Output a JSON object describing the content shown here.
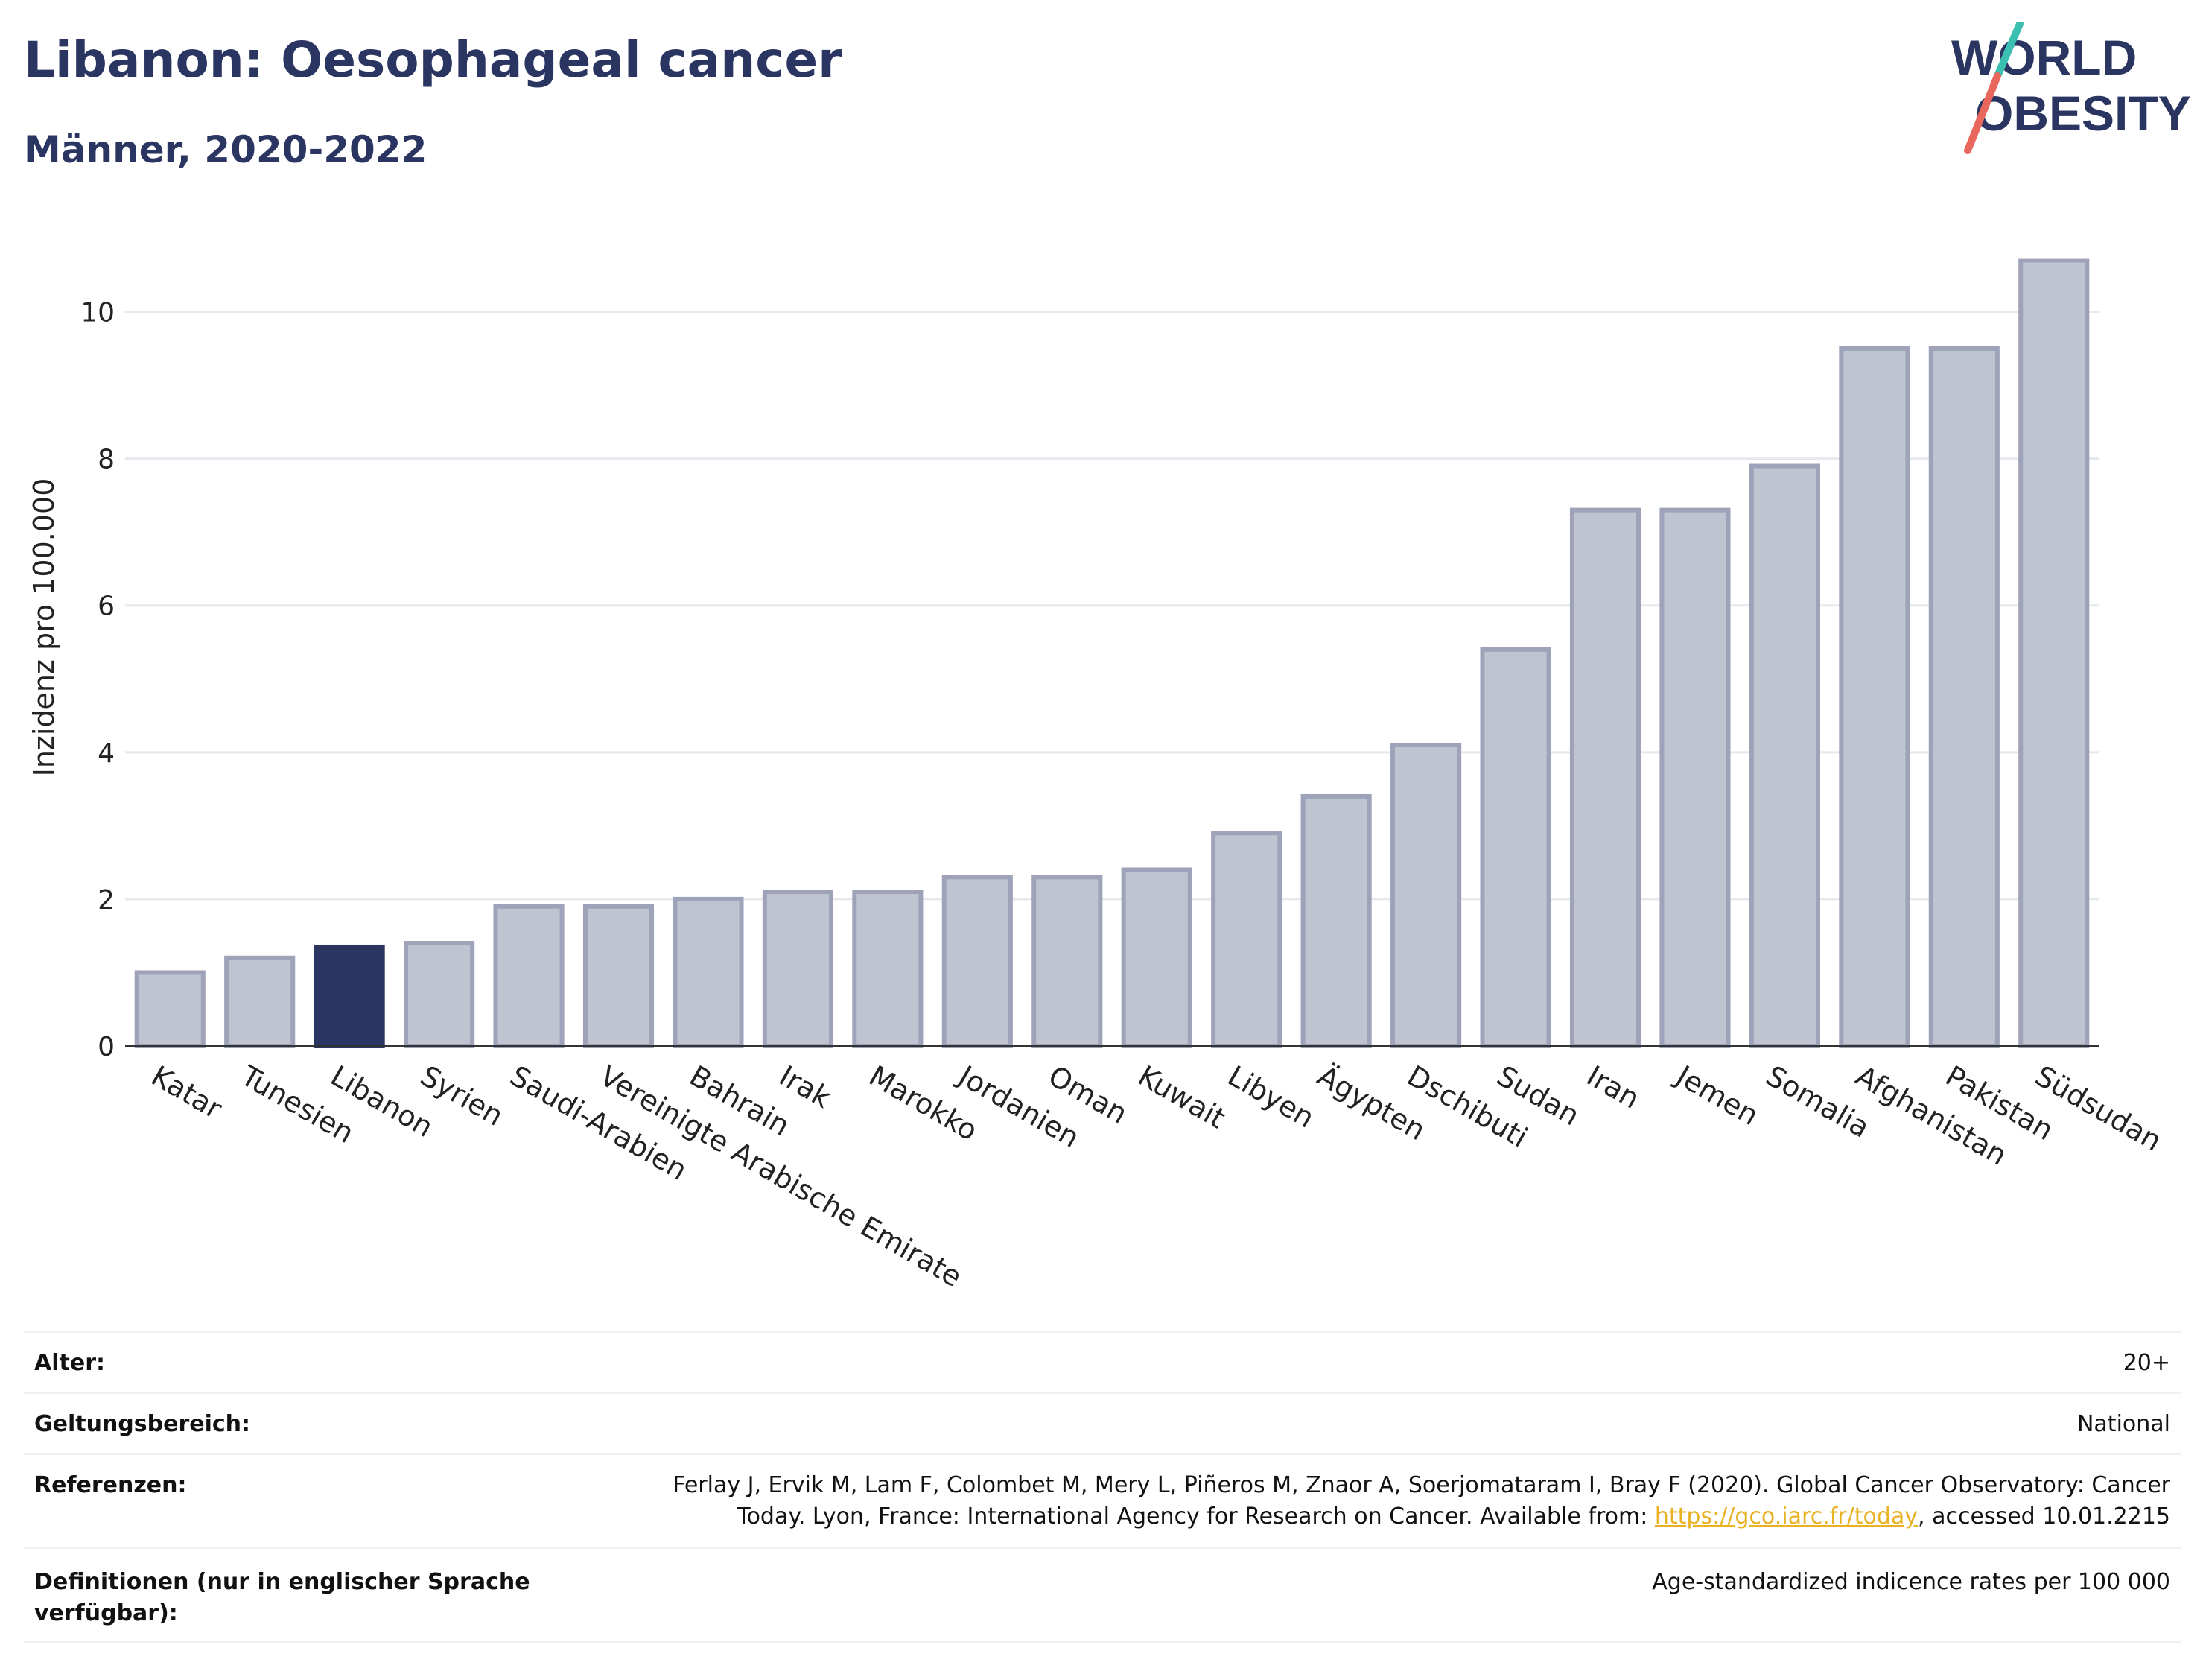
{
  "header": {
    "title": "Libanon: Oesophageal cancer",
    "subtitle": "Männer, 2020-2022"
  },
  "logo": {
    "line1": "WORLD",
    "line2": "OBESITY",
    "text_color": "#2b3561",
    "slash_top_color": "#3bbfb1",
    "slash_bottom_color": "#e8685d"
  },
  "colors": {
    "bar": "#c0c3d0",
    "bar_border": "#9ea3b9",
    "highlight": "#2b3561",
    "grid": "#e6e8ee",
    "axis": "#333333"
  },
  "chart_data": {
    "type": "bar",
    "ylabel": "Inzidenz pro 100.000",
    "ylim": [
      0,
      11
    ],
    "yticks": [
      0,
      2,
      4,
      6,
      8,
      10
    ],
    "grid": true,
    "highlight_category": "Libanon",
    "categories": [
      "Katar",
      "Tunesien",
      "Libanon",
      "Syrien",
      "Saudi-Arabien",
      "Vereinigte Arabische Emirate",
      "Bahrain",
      "Irak",
      "Marokko",
      "Jordanien",
      "Oman",
      "Kuwait",
      "Libyen",
      "Ägypten",
      "Dschibuti",
      "Sudan",
      "Iran",
      "Jemen",
      "Somalia",
      "Afghanistan",
      "Pakistan",
      "Südsudan"
    ],
    "values": [
      1.0,
      1.2,
      1.35,
      1.4,
      1.9,
      1.9,
      2.0,
      2.1,
      2.1,
      2.3,
      2.3,
      2.4,
      2.9,
      3.4,
      4.1,
      5.4,
      7.3,
      7.3,
      7.9,
      9.5,
      9.5,
      10.7
    ]
  },
  "meta": {
    "age_label": "Alter:",
    "age_value": "20+",
    "scope_label": "Geltungsbereich:",
    "scope_value": "National",
    "ref_label": "Referenzen:",
    "ref_line1": "Ferlay J, Ervik M, Lam F, Colombet M, Mery L, Piñeros M, Znaor A, Soerjomataram I, Bray F (2020). Global Cancer Observatory: Cancer",
    "ref_line2_pre": "Today. Lyon, France: International Agency for Research on Cancer. Available from: ",
    "ref_link": "https://gco.iarc.fr/today",
    "ref_line2_post": ", accessed 10.01.2215",
    "def_label_line1": "Definitionen (nur in englischer Sprache",
    "def_label_line2": "verfügbar):",
    "def_value": "Age-standardized indicence rates per 100 000"
  }
}
